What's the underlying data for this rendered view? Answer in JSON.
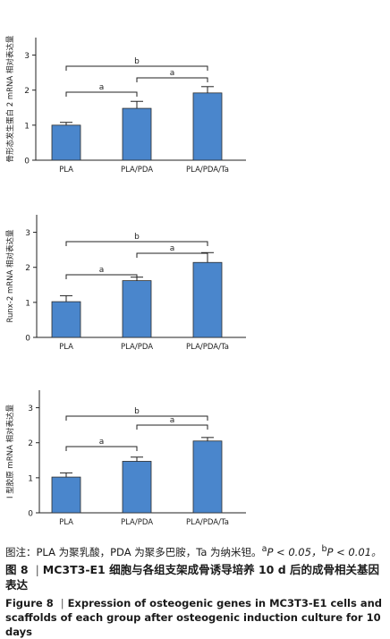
{
  "chart_data": [
    {
      "type": "bar",
      "categories": [
        "PLA",
        "PLA/PDA",
        "PLA/PDA/Ta"
      ],
      "values": [
        1.0,
        1.48,
        1.92
      ],
      "errors": [
        0.08,
        0.2,
        0.18
      ],
      "ylabel": "骨形态发生蛋白 2 mRNA 相对表达量",
      "ylim": [
        0,
        3.5
      ],
      "yticks": [
        "0",
        "1",
        "2",
        "3"
      ],
      "significance": [
        {
          "from": 0,
          "to": 1,
          "label": "a"
        },
        {
          "from": 1,
          "to": 2,
          "label": "a"
        },
        {
          "from": 0,
          "to": 2,
          "label": "b"
        }
      ],
      "bar_color": "#4a86cc"
    },
    {
      "type": "bar",
      "categories": [
        "PLA",
        "PLA/PDA",
        "PLA/PDA/Ta"
      ],
      "values": [
        1.02,
        1.62,
        2.14
      ],
      "errors": [
        0.17,
        0.1,
        0.28
      ],
      "ylabel": "Runx-2 mRNA 相对表达量",
      "ylim": [
        0,
        3.5
      ],
      "yticks": [
        "0",
        "1",
        "2",
        "3"
      ],
      "significance": [
        {
          "from": 0,
          "to": 1,
          "label": "a"
        },
        {
          "from": 1,
          "to": 2,
          "label": "a"
        },
        {
          "from": 0,
          "to": 2,
          "label": "b"
        }
      ],
      "bar_color": "#4a86cc"
    },
    {
      "type": "bar",
      "categories": [
        "PLA",
        "PLA/PDA",
        "PLA/PDA/Ta"
      ],
      "values": [
        1.02,
        1.47,
        2.05
      ],
      "errors": [
        0.12,
        0.12,
        0.1
      ],
      "ylabel": "Ⅰ 型胶原 mRNA 相对表达量",
      "ylim": [
        0,
        3.5
      ],
      "yticks": [
        "0",
        "1",
        "2",
        "3"
      ],
      "significance": [
        {
          "from": 0,
          "to": 1,
          "label": "a"
        },
        {
          "from": 1,
          "to": 2,
          "label": "a"
        },
        {
          "from": 0,
          "to": 2,
          "label": "b"
        }
      ],
      "bar_color": "#4a86cc"
    }
  ],
  "caption": {
    "note_prefix": "图注：PLA 为聚乳酸，PDA 为聚多巴胺，Ta 为纳米钽。",
    "note_a_sup": "a",
    "note_a_text": "P < 0.05，",
    "note_b_sup": "b",
    "note_b_text": "P < 0.01。",
    "figure_label_zh": "图 8",
    "separator": "|",
    "title_zh": "MC3T3-E1 细胞与各组支架成骨诱导培养 10 d 后的成骨相关基因表达",
    "figure_label_en": "Figure 8",
    "title_en": "Expression of osteogenic genes in MC3T3-E1 cells and scaffolds of each group after osteogenic induction culture for 10 days"
  }
}
